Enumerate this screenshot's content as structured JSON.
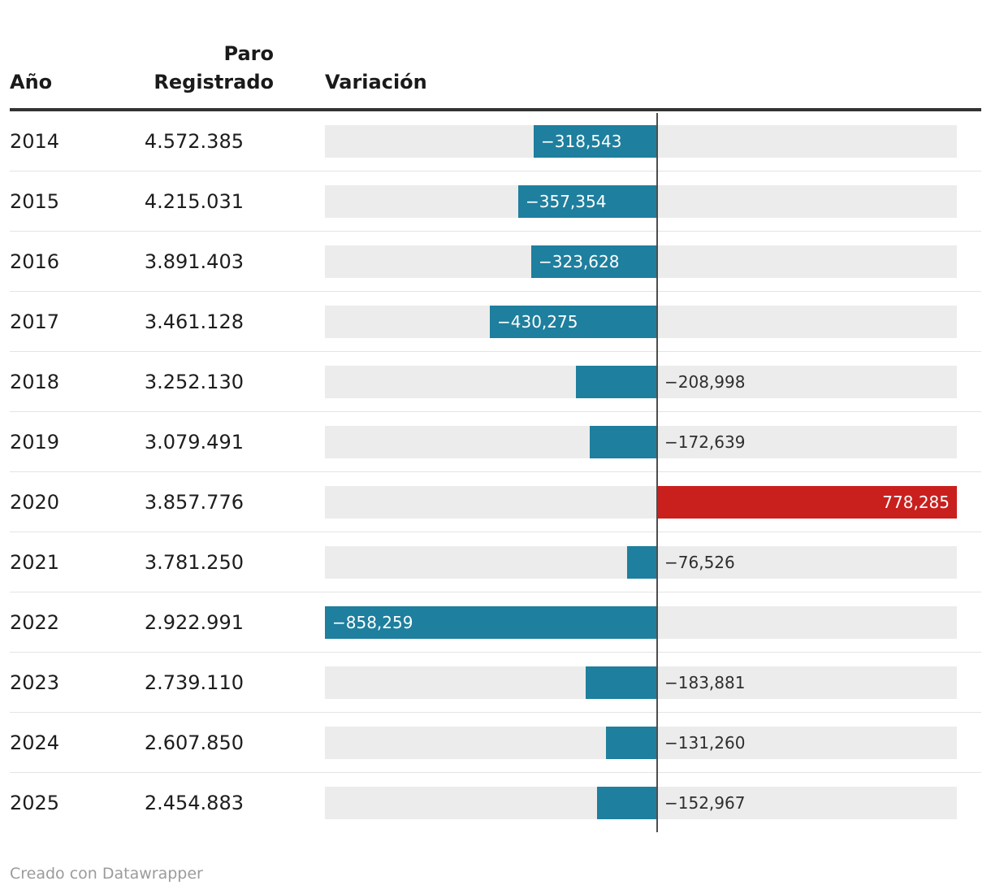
{
  "table": {
    "header": {
      "year": "Año",
      "paro": "Paro Registrado",
      "variacion": "Variación"
    },
    "rows": [
      {
        "year": "2014",
        "paro": "4.572.385",
        "variacion": -318543,
        "variacion_label": "−318,543"
      },
      {
        "year": "2015",
        "paro": "4.215.031",
        "variacion": -357354,
        "variacion_label": "−357,354"
      },
      {
        "year": "2016",
        "paro": "3.891.403",
        "variacion": -323628,
        "variacion_label": "−323,628"
      },
      {
        "year": "2017",
        "paro": "3.461.128",
        "variacion": -430275,
        "variacion_label": "−430,275"
      },
      {
        "year": "2018",
        "paro": "3.252.130",
        "variacion": -208998,
        "variacion_label": "−208,998"
      },
      {
        "year": "2019",
        "paro": "3.079.491",
        "variacion": -172639,
        "variacion_label": "−172,639"
      },
      {
        "year": "2020",
        "paro": "3.857.776",
        "variacion": 778285,
        "variacion_label": "778,285"
      },
      {
        "year": "2021",
        "paro": "3.781.250",
        "variacion": -76526,
        "variacion_label": "−76,526"
      },
      {
        "year": "2022",
        "paro": "2.922.991",
        "variacion": -858259,
        "variacion_label": "−858,259"
      },
      {
        "year": "2023",
        "paro": "2.739.110",
        "variacion": -183881,
        "variacion_label": "−183,881"
      },
      {
        "year": "2024",
        "paro": "2.607.850",
        "variacion": -131260,
        "variacion_label": "−131,260"
      },
      {
        "year": "2025",
        "paro": "2.454.883",
        "variacion": -152967,
        "variacion_label": "−152,967"
      }
    ]
  },
  "footer": {
    "credit": "Creado con Datawrapper"
  },
  "colors": {
    "negative_bar": "#1e7f9e",
    "positive_bar": "#c9201e",
    "track": "#ececec",
    "zero_line": "#4d4d4d",
    "header_rule": "#333333",
    "row_separator": "#e4e4e4",
    "text": "#1d1d1d",
    "outside_label": "#2e2e2e",
    "inside_label": "#ffffff",
    "footer_text": "#9b9b9b"
  },
  "chart_data": {
    "type": "bar",
    "orientation": "horizontal",
    "title": "",
    "categories": [
      2014,
      2015,
      2016,
      2017,
      2018,
      2019,
      2020,
      2021,
      2022,
      2023,
      2024,
      2025
    ],
    "series": [
      {
        "name": "Paro Registrado",
        "values": [
          4572385,
          4215031,
          3891403,
          3461128,
          3252130,
          3079491,
          3857776,
          3781250,
          2922991,
          2739110,
          2607850,
          2454883
        ]
      },
      {
        "name": "Variación",
        "values": [
          -318543,
          -357354,
          -323628,
          -430275,
          -208998,
          -172639,
          778285,
          -76526,
          -858259,
          -183881,
          -131260,
          -152967
        ]
      }
    ],
    "xlim": [
      -858259,
      778285
    ],
    "grid": "zero-line-only",
    "legend": "none",
    "bar_color_negative": "#1e7f9e",
    "bar_color_positive": "#c9201e"
  }
}
